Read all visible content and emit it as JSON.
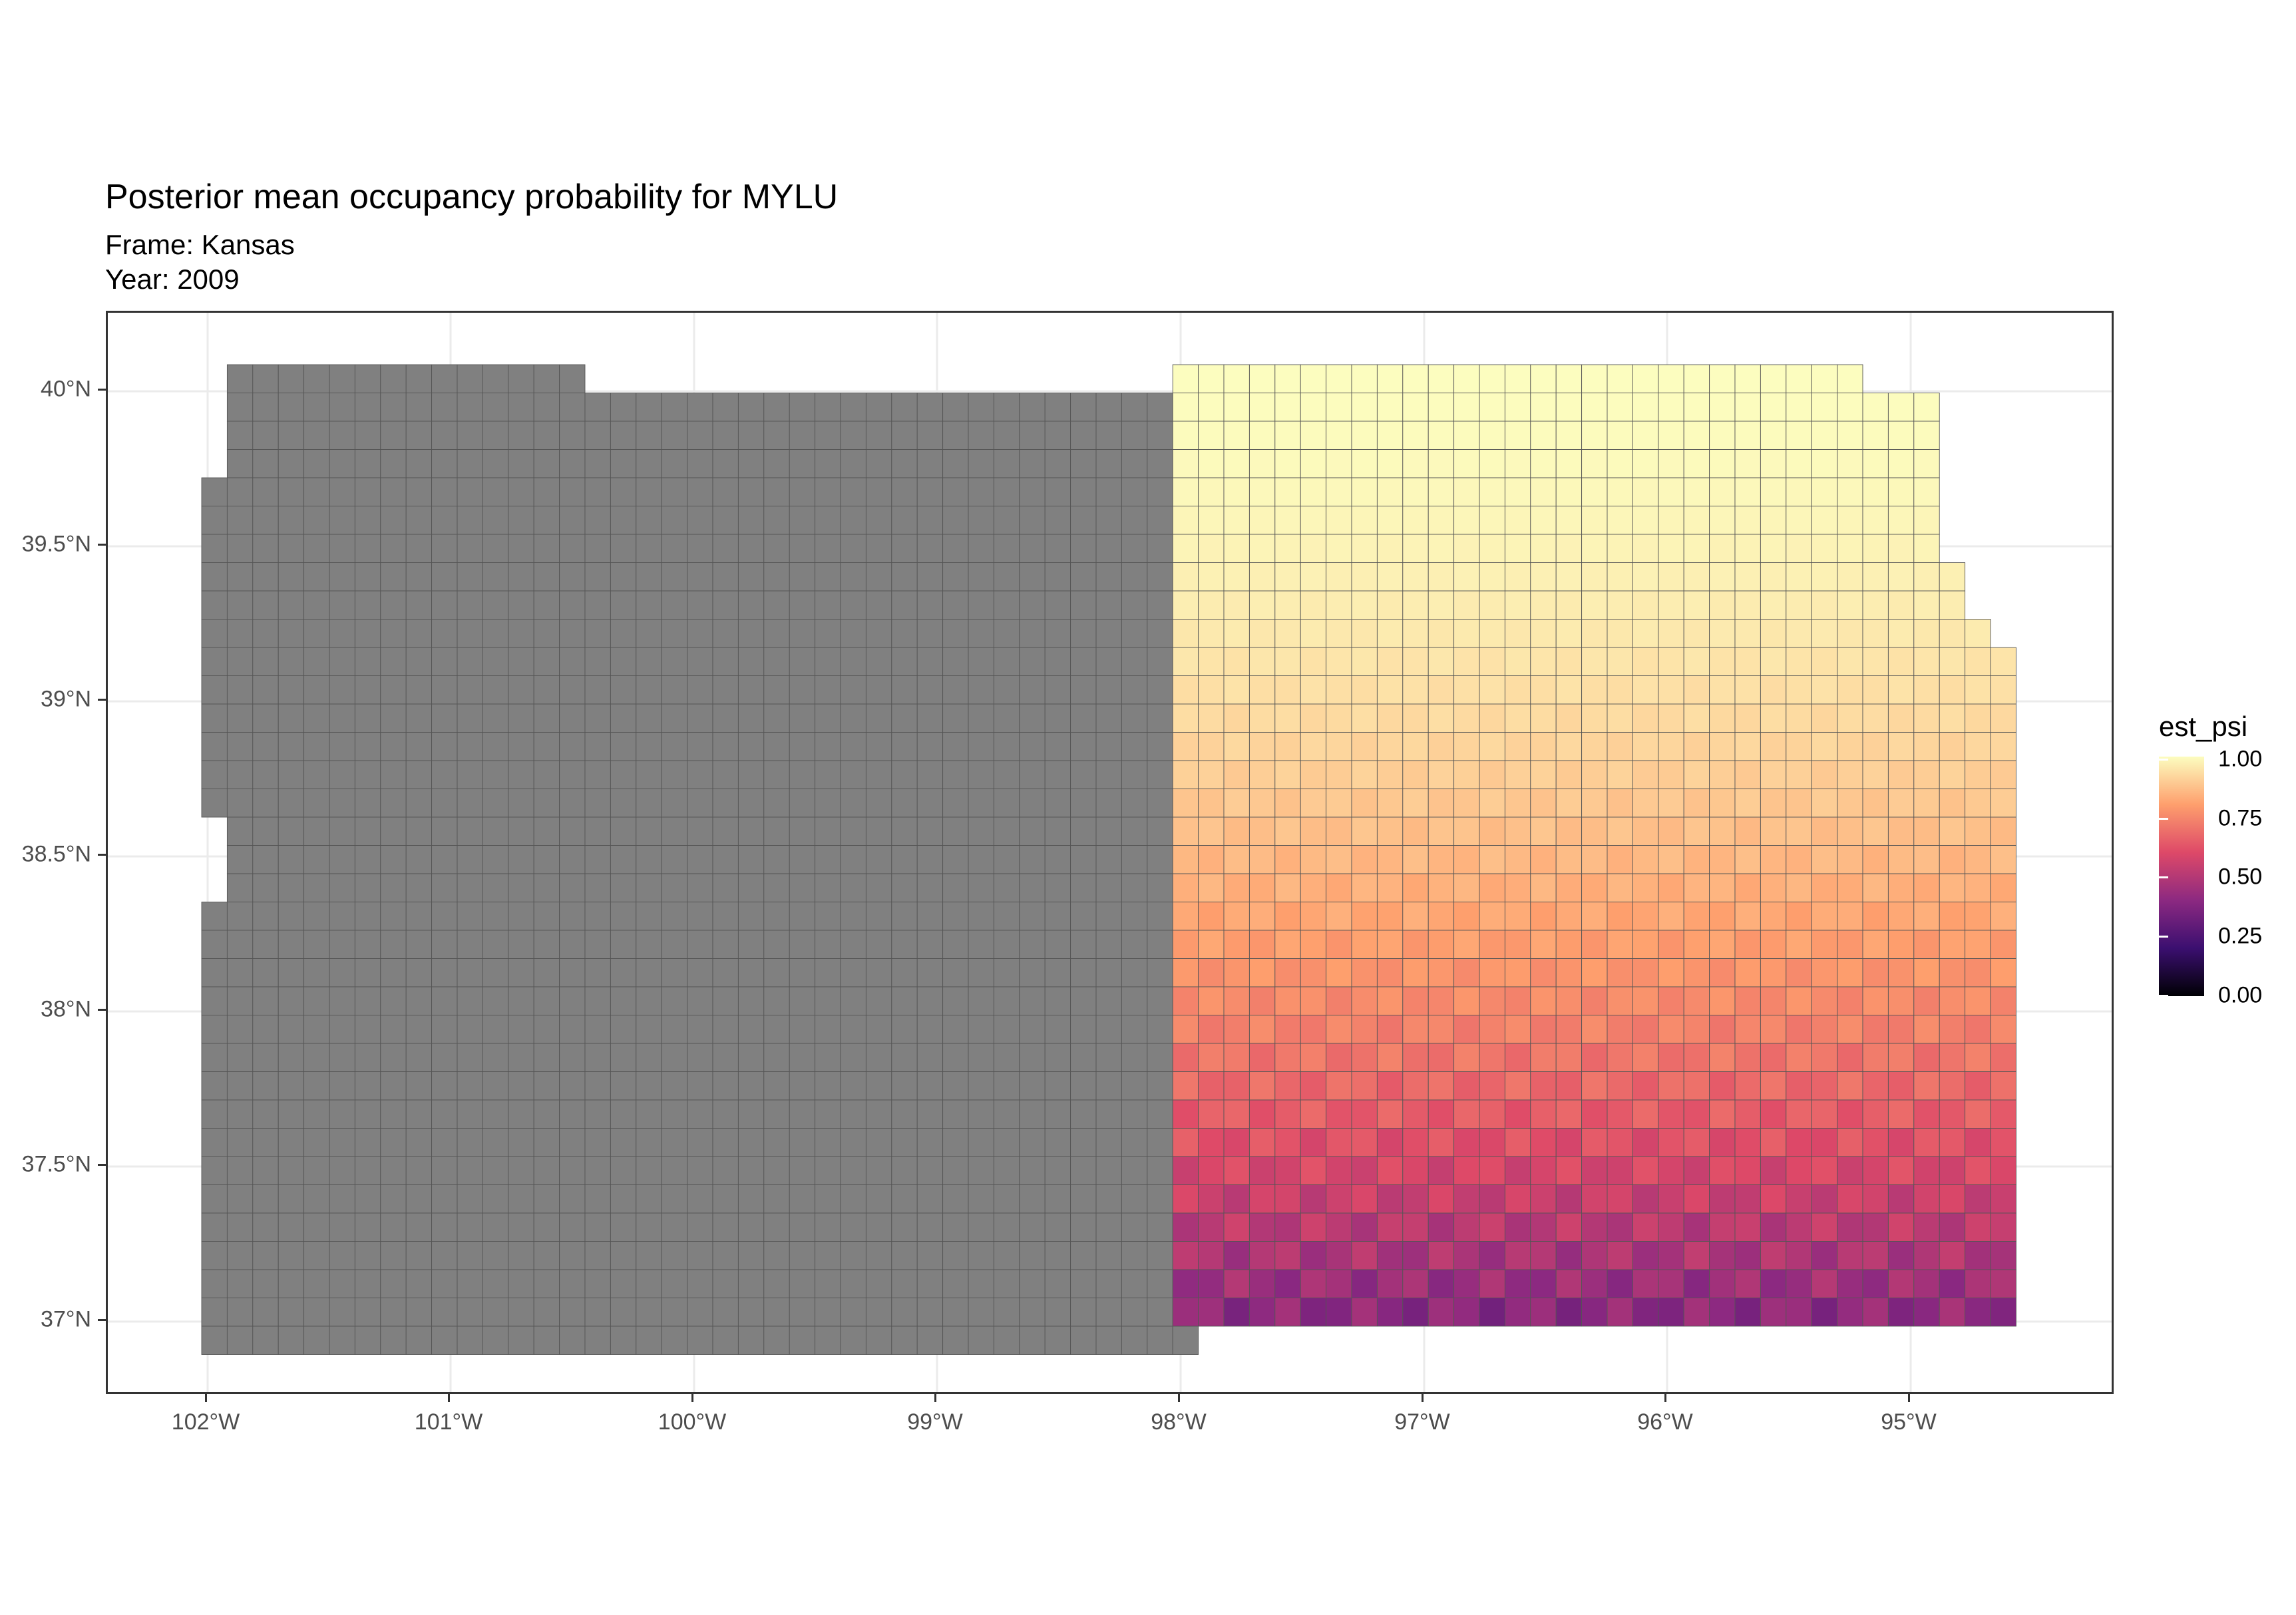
{
  "title": "Posterior mean occupancy probability for MYLU",
  "subtitle_lines": [
    "Frame: Kansas",
    "Year: 2009"
  ],
  "y_axis_ticks": [
    "40°N",
    "39.5°N",
    "39°N",
    "38.5°N",
    "38°N",
    "37.5°N",
    "37°N"
  ],
  "x_axis_ticks": [
    "102°W",
    "101°W",
    "100°W",
    "99°W",
    "98°W",
    "97°W",
    "96°W",
    "95°W"
  ],
  "legend": {
    "title": "est_psi",
    "labels": [
      "1.00",
      "0.75",
      "0.50",
      "0.25",
      "0.00"
    ],
    "color_stops": [
      "#fcfdbf",
      "#fe9f6d",
      "#de4968",
      "#8c2981",
      "#3b0f70",
      "#000004"
    ]
  },
  "colors": {
    "na_cells": "#808080",
    "grid": "#ebebeb",
    "panel_border": "#333333"
  }
}
